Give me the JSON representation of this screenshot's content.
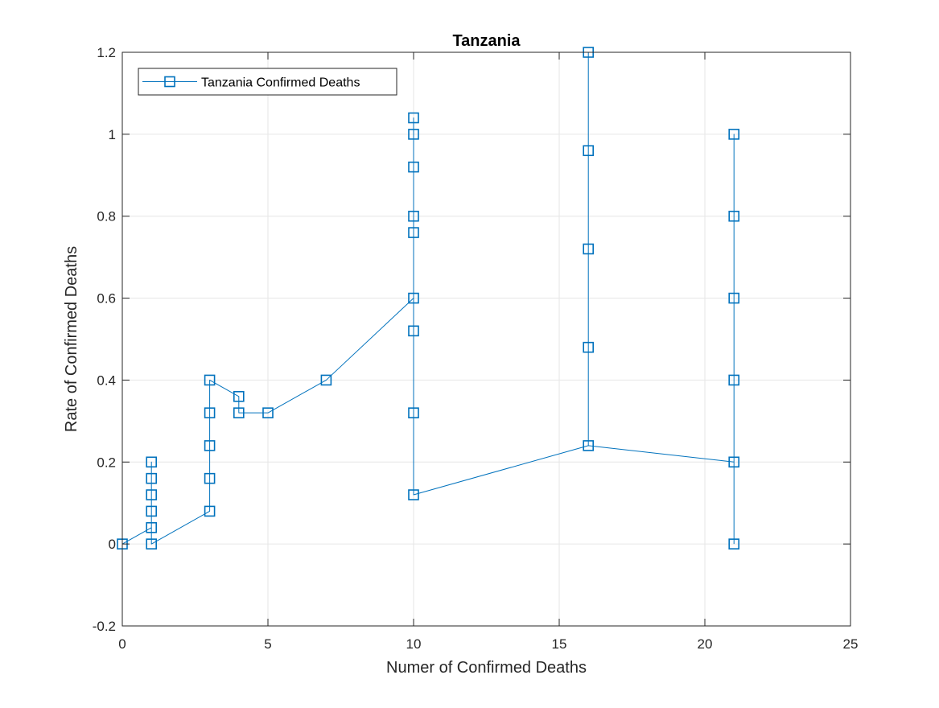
{
  "chart_data": {
    "type": "line",
    "title": "Tanzania",
    "xlabel": "Numer of Confirmed Deaths",
    "ylabel": "Rate of Confirmed Deaths",
    "xlim": [
      0,
      25
    ],
    "ylim": [
      -0.2,
      1.2
    ],
    "xticks": [
      0,
      5,
      10,
      15,
      20,
      25
    ],
    "yticks": [
      -0.2,
      0,
      0.2,
      0.4,
      0.6,
      0.8,
      1,
      1.2
    ],
    "xtick_labels": [
      "0",
      "5",
      "10",
      "15",
      "20",
      "25"
    ],
    "ytick_labels": [
      "-0.2",
      "0",
      "0.2",
      "0.4",
      "0.6",
      "0.8",
      "1",
      "1.2"
    ],
    "grid": true,
    "legend_position": "top-left",
    "series": [
      {
        "name": "Tanzania Confirmed Deaths",
        "color": "#0072BD",
        "marker": "square",
        "points": [
          {
            "x": 0,
            "y": 0
          },
          {
            "x": 0,
            "y": 0
          },
          {
            "x": 0,
            "y": 0
          },
          {
            "x": 0,
            "y": 0
          },
          {
            "x": 1,
            "y": 0.04
          },
          {
            "x": 1,
            "y": 0
          },
          {
            "x": 1,
            "y": 0.08
          },
          {
            "x": 1,
            "y": 0.12
          },
          {
            "x": 1,
            "y": 0.16
          },
          {
            "x": 1,
            "y": 0.2
          },
          {
            "x": 1,
            "y": 0.16
          },
          {
            "x": 1,
            "y": 0.12
          },
          {
            "x": 1,
            "y": 0.08
          },
          {
            "x": 1,
            "y": 0.04
          },
          {
            "x": 1,
            "y": 0
          },
          {
            "x": 3,
            "y": 0.08
          },
          {
            "x": 3,
            "y": 0.16
          },
          {
            "x": 3,
            "y": 0.24
          },
          {
            "x": 3,
            "y": 0.32
          },
          {
            "x": 3,
            "y": 0.4
          },
          {
            "x": 4,
            "y": 0.36
          },
          {
            "x": 4,
            "y": 0.32
          },
          {
            "x": 5,
            "y": 0.32
          },
          {
            "x": 7,
            "y": 0.4
          },
          {
            "x": 10,
            "y": 0.6
          },
          {
            "x": 10,
            "y": 0.76
          },
          {
            "x": 10,
            "y": 0.8
          },
          {
            "x": 10,
            "y": 0.92
          },
          {
            "x": 10,
            "y": 1.0
          },
          {
            "x": 10,
            "y": 1.04
          },
          {
            "x": 10,
            "y": 0.52
          },
          {
            "x": 10,
            "y": 0.32
          },
          {
            "x": 10,
            "y": 0.12
          },
          {
            "x": 16,
            "y": 0.24
          },
          {
            "x": 16,
            "y": 0.48
          },
          {
            "x": 16,
            "y": 0.72
          },
          {
            "x": 16,
            "y": 0.96
          },
          {
            "x": 16,
            "y": 1.2
          },
          {
            "x": 16,
            "y": 0.24
          },
          {
            "x": 21,
            "y": 0.2
          },
          {
            "x": 21,
            "y": 0.4
          },
          {
            "x": 21,
            "y": 0.6
          },
          {
            "x": 21,
            "y": 0.8
          },
          {
            "x": 21,
            "y": 1.0
          },
          {
            "x": 21,
            "y": 0
          }
        ]
      }
    ]
  }
}
